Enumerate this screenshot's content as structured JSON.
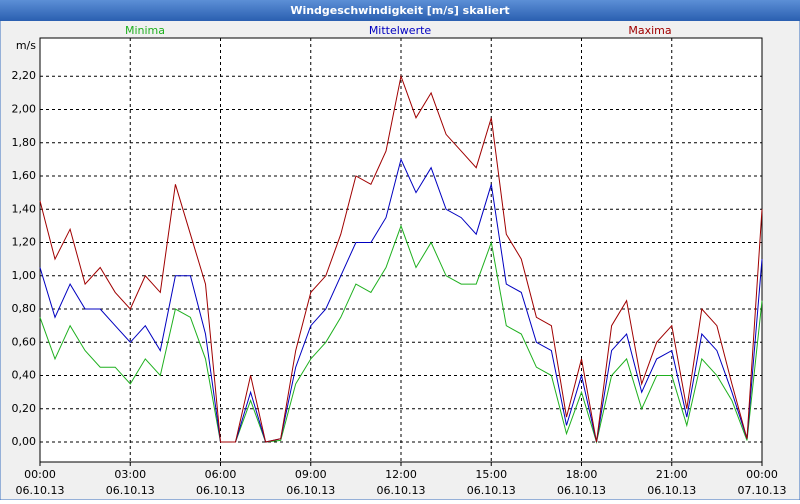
{
  "chart_data": {
    "type": "line",
    "title": "Windgeschwindigkeit [m/s] skaliert",
    "ylabel": "m/s",
    "x": [
      0,
      0.5,
      1,
      1.5,
      2,
      2.5,
      3,
      3.5,
      4,
      4.5,
      5,
      5.5,
      6,
      6.5,
      7,
      7.5,
      8,
      8.5,
      9,
      9.5,
      10,
      10.5,
      11,
      11.5,
      12,
      12.5,
      13,
      13.5,
      14,
      14.5,
      15,
      15.5,
      16,
      16.5,
      17,
      17.5,
      18,
      18.5,
      19,
      19.5,
      20,
      20.5,
      21,
      21.5,
      22,
      22.5,
      23,
      23.5,
      24
    ],
    "series": [
      {
        "name": "Minima",
        "color": "#1fb01f",
        "values": [
          0.75,
          0.5,
          0.7,
          0.55,
          0.45,
          0.45,
          0.35,
          0.5,
          0.4,
          0.8,
          0.75,
          0.5,
          0.0,
          0.0,
          0.25,
          0.0,
          0.01,
          0.35,
          0.5,
          0.6,
          0.75,
          0.95,
          0.9,
          1.05,
          1.3,
          1.05,
          1.2,
          1.0,
          0.95,
          0.95,
          1.2,
          0.7,
          0.65,
          0.45,
          0.4,
          0.05,
          0.3,
          0.0,
          0.4,
          0.5,
          0.2,
          0.4,
          0.4,
          0.1,
          0.5,
          0.4,
          0.25,
          0.01,
          0.85
        ]
      },
      {
        "name": "Mittelwerte",
        "color": "#0000c0",
        "values": [
          1.05,
          0.75,
          0.95,
          0.8,
          0.8,
          0.7,
          0.6,
          0.7,
          0.55,
          1.0,
          1.0,
          0.65,
          0.0,
          0.0,
          0.3,
          0.0,
          0.02,
          0.45,
          0.7,
          0.8,
          1.0,
          1.2,
          1.2,
          1.35,
          1.7,
          1.5,
          1.65,
          1.4,
          1.35,
          1.25,
          1.55,
          0.95,
          0.9,
          0.6,
          0.55,
          0.1,
          0.4,
          0.0,
          0.55,
          0.65,
          0.3,
          0.5,
          0.55,
          0.15,
          0.65,
          0.55,
          0.3,
          0.02,
          1.1
        ]
      },
      {
        "name": "Maxima",
        "color": "#a00000",
        "values": [
          1.45,
          1.1,
          1.28,
          0.95,
          1.05,
          0.9,
          0.8,
          1.0,
          0.9,
          1.55,
          1.25,
          0.95,
          0.0,
          0.0,
          0.4,
          0.0,
          0.02,
          0.55,
          0.9,
          1.0,
          1.25,
          1.6,
          1.55,
          1.75,
          2.2,
          1.95,
          2.1,
          1.85,
          1.75,
          1.65,
          1.95,
          1.25,
          1.1,
          0.75,
          0.7,
          0.15,
          0.5,
          0.0,
          0.7,
          0.85,
          0.35,
          0.6,
          0.7,
          0.2,
          0.8,
          0.7,
          0.35,
          0.02,
          1.4
        ]
      }
    ],
    "xlim": [
      0,
      24
    ],
    "xticks": [
      {
        "value": 0,
        "label": "00:00\n06.10.13"
      },
      {
        "value": 3,
        "label": "03:00\n06.10.13"
      },
      {
        "value": 6,
        "label": "06:00\n06.10.13"
      },
      {
        "value": 9,
        "label": "09:00\n06.10.13"
      },
      {
        "value": 12,
        "label": "12:00\n06.10.13"
      },
      {
        "value": 15,
        "label": "15:00\n06.10.13"
      },
      {
        "value": 18,
        "label": "18:00\n06.10.13"
      },
      {
        "value": 21,
        "label": "21:00\n06.10.13"
      },
      {
        "value": 24,
        "label": "00:00\n07.10.13"
      }
    ],
    "ylim": [
      -0.12,
      2.43
    ],
    "yticks": [
      {
        "value": 0,
        "label": "0,00"
      },
      {
        "value": 0.2,
        "label": "0,20"
      },
      {
        "value": 0.4,
        "label": "0,40"
      },
      {
        "value": 0.6,
        "label": "0,60"
      },
      {
        "value": 0.8,
        "label": "0,80"
      },
      {
        "value": 1.0,
        "label": "1,00"
      },
      {
        "value": 1.2,
        "label": "1,20"
      },
      {
        "value": 1.4,
        "label": "1,40"
      },
      {
        "value": 1.6,
        "label": "1,60"
      },
      {
        "value": 1.8,
        "label": "1,80"
      },
      {
        "value": 2.0,
        "label": "2,00"
      },
      {
        "value": 2.2,
        "label": "2,20"
      }
    ],
    "grid": true
  }
}
